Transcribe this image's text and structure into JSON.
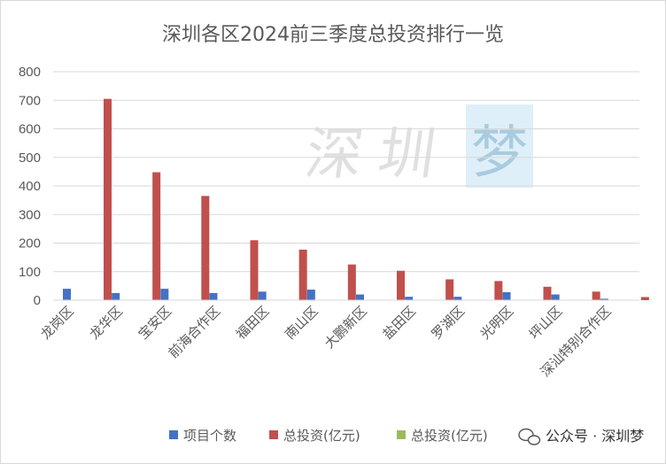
{
  "chart_data": {
    "type": "bar",
    "title": "深圳各区2024前三季度总投资排行一览",
    "categories": [
      "龙岗区",
      "龙华区",
      "宝安区",
      "前海合作区",
      "福田区",
      "南山区",
      "大鹏新区",
      "盐田区",
      "罗湖区",
      "光明区",
      "坪山区",
      "深汕特别合作区"
    ],
    "series": [
      {
        "name": "项目个数",
        "color": "#4472c4",
        "values": [
          40,
          25,
          40,
          25,
          30,
          37,
          20,
          12,
          12,
          28,
          20,
          5
        ]
      },
      {
        "name": "总投资(亿元)",
        "color": "#c0504d",
        "values": [
          705,
          448,
          365,
          210,
          177,
          125,
          103,
          73,
          67,
          47,
          30,
          11
        ]
      },
      {
        "name": "总投资(亿元)",
        "color": "#9bbb59",
        "values": [
          0,
          0,
          0,
          0,
          0,
          0,
          0,
          0,
          0,
          0,
          0,
          0
        ]
      }
    ],
    "yticks": [
      "0",
      "100",
      "200",
      "300",
      "400",
      "500",
      "600",
      "700",
      "800"
    ],
    "ylim": [
      0,
      800
    ],
    "grid": true,
    "legend": "bottom"
  },
  "watermark": {
    "left": "深圳",
    "right": "梦"
  },
  "credit": {
    "icon": "wechat-icon",
    "text": "公众号 · 深圳梦"
  }
}
